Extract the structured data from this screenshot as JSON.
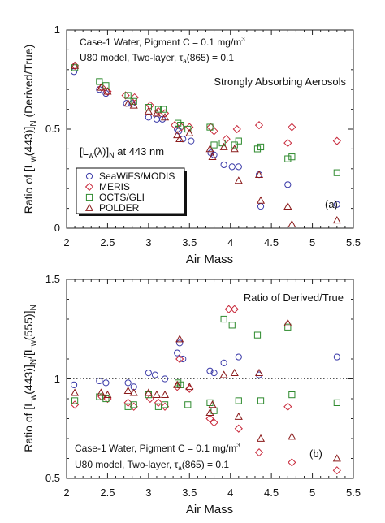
{
  "chart_data": [
    {
      "type": "scatter",
      "panel_label": "(a)",
      "xlabel": "Air Mass",
      "ylabel_parts": [
        "Ratio of [L",
        "w",
        "(443)]",
        "N",
        " (Derived/True)"
      ],
      "xlim": [
        2,
        5.5
      ],
      "ylim": [
        0,
        1
      ],
      "xticks": [
        "2",
        "2.5",
        "3",
        "3.5",
        "4",
        "4.5",
        "5",
        "5.5"
      ],
      "yticks": [
        "0",
        "0.5",
        "1"
      ],
      "annotations": {
        "line1": "Case-1 Water, Pigment C = 0.1 mg/m",
        "line1_sup": "3",
        "line2_a": "U80 model, Two-layer, τ",
        "line2_sub": "a",
        "line2_b": "(865) = 0.1",
        "aerosol": "Strongly Absorbing Aerosols",
        "wl_a": "[L",
        "wl_sub1": "w",
        "wl_b": "(λ)]",
        "wl_sub2": "N",
        "wl_c": " at 443 nm"
      },
      "legend": [
        {
          "name": "SeaWiFS/MODIS",
          "marker": "circle",
          "color": "#3a3aa8"
        },
        {
          "name": "MERIS",
          "marker": "diamond",
          "color": "#c8283a"
        },
        {
          "name": "OCTS/GLI",
          "marker": "square",
          "color": "#2e8a2e"
        },
        {
          "name": "POLDER",
          "marker": "triangle",
          "color": "#8a1a1a"
        }
      ],
      "series": [
        {
          "name": "SeaWiFS/MODIS",
          "points": [
            [
              2.09,
              0.79
            ],
            [
              2.4,
              0.7
            ],
            [
              2.48,
              0.68
            ],
            [
              2.73,
              0.63
            ],
            [
              2.8,
              0.63
            ],
            [
              3.0,
              0.56
            ],
            [
              3.1,
              0.55
            ],
            [
              3.17,
              0.55
            ],
            [
              3.35,
              0.5
            ],
            [
              3.37,
              0.49
            ],
            [
              3.42,
              0.45
            ],
            [
              3.52,
              0.44
            ],
            [
              3.76,
              0.38
            ],
            [
              3.8,
              0.37
            ],
            [
              3.92,
              0.32
            ],
            [
              4.02,
              0.31
            ],
            [
              4.1,
              0.31
            ],
            [
              4.35,
              0.27
            ],
            [
              4.37,
              0.11
            ],
            [
              4.7,
              0.22
            ],
            [
              5.3,
              0.12
            ]
          ]
        },
        {
          "name": "MERIS",
          "points": [
            [
              2.1,
              0.82
            ],
            [
              2.43,
              0.71
            ],
            [
              2.5,
              0.69
            ],
            [
              2.72,
              0.67
            ],
            [
              2.83,
              0.66
            ],
            [
              3.02,
              0.62
            ],
            [
              3.12,
              0.59
            ],
            [
              3.2,
              0.58
            ],
            [
              3.32,
              0.52
            ],
            [
              3.4,
              0.51
            ],
            [
              3.5,
              0.51
            ],
            [
              3.76,
              0.51
            ],
            [
              3.8,
              0.49
            ],
            [
              3.95,
              0.45
            ],
            [
              4.08,
              0.5
            ],
            [
              4.35,
              0.52
            ],
            [
              4.7,
              0.43
            ],
            [
              4.75,
              0.51
            ],
            [
              5.3,
              0.44
            ]
          ]
        },
        {
          "name": "OCTS/GLI",
          "points": [
            [
              2.1,
              0.81
            ],
            [
              2.4,
              0.74
            ],
            [
              2.48,
              0.72
            ],
            [
              2.75,
              0.67
            ],
            [
              2.82,
              0.64
            ],
            [
              3.0,
              0.61
            ],
            [
              3.12,
              0.6
            ],
            [
              3.18,
              0.6
            ],
            [
              3.36,
              0.53
            ],
            [
              3.39,
              0.52
            ],
            [
              3.48,
              0.5
            ],
            [
              3.75,
              0.51
            ],
            [
              3.8,
              0.42
            ],
            [
              3.9,
              0.43
            ],
            [
              4.05,
              0.42
            ],
            [
              4.1,
              0.44
            ],
            [
              4.33,
              0.4
            ],
            [
              4.37,
              0.41
            ],
            [
              4.7,
              0.35
            ],
            [
              4.75,
              0.36
            ],
            [
              5.3,
              0.28
            ]
          ]
        },
        {
          "name": "POLDER",
          "points": [
            [
              2.1,
              0.82
            ],
            [
              2.42,
              0.71
            ],
            [
              2.5,
              0.69
            ],
            [
              2.75,
              0.63
            ],
            [
              2.82,
              0.62
            ],
            [
              3.0,
              0.59
            ],
            [
              3.1,
              0.58
            ],
            [
              3.2,
              0.56
            ],
            [
              3.35,
              0.47
            ],
            [
              3.38,
              0.45
            ],
            [
              3.5,
              0.48
            ],
            [
              3.75,
              0.4
            ],
            [
              3.78,
              0.36
            ],
            [
              3.92,
              0.41
            ],
            [
              4.05,
              0.4
            ],
            [
              4.1,
              0.24
            ],
            [
              4.35,
              0.27
            ],
            [
              4.37,
              0.14
            ],
            [
              4.7,
              0.11
            ],
            [
              4.75,
              0.02
            ],
            [
              5.3,
              0.04
            ]
          ]
        }
      ]
    },
    {
      "type": "scatter",
      "panel_label": "(b)",
      "xlabel": "Air Mass",
      "ylabel_parts": [
        "Ratio of [L",
        "w",
        "(443)]",
        "N",
        "/[L",
        "w",
        "(555)]",
        "N"
      ],
      "xlim": [
        2,
        5.5
      ],
      "ylim": [
        0.5,
        1.5
      ],
      "xticks": [
        "2",
        "2.5",
        "3",
        "3.5",
        "4",
        "4.5",
        "5",
        "5.5"
      ],
      "yticks": [
        "0.5",
        "1",
        "1.5"
      ],
      "reference_line": 1,
      "annotations": {
        "title": "Ratio of Derived/True",
        "line1": "Case-1 Water, Pigment C = 0.1 mg/m",
        "line1_sup": "3",
        "line2_a": "U80 model, Two-layer, τ",
        "line2_sub": "a",
        "line2_b": "(865) = 0.1"
      },
      "series": [
        {
          "name": "SeaWiFS/MODIS",
          "points": [
            [
              2.09,
              0.97
            ],
            [
              2.4,
              0.99
            ],
            [
              2.48,
              0.98
            ],
            [
              2.75,
              0.98
            ],
            [
              2.82,
              0.96
            ],
            [
              3.0,
              1.03
            ],
            [
              3.08,
              1.02
            ],
            [
              3.2,
              1.0
            ],
            [
              3.35,
              1.13
            ],
            [
              3.38,
              1.18
            ],
            [
              3.42,
              1.1
            ],
            [
              3.75,
              1.04
            ],
            [
              3.8,
              1.03
            ],
            [
              3.92,
              1.08
            ],
            [
              4.1,
              1.11
            ],
            [
              4.35,
              1.02
            ],
            [
              5.3,
              1.11
            ]
          ]
        },
        {
          "name": "MERIS",
          "points": [
            [
              2.1,
              0.87
            ],
            [
              2.43,
              0.91
            ],
            [
              2.5,
              0.9
            ],
            [
              2.75,
              0.88
            ],
            [
              2.82,
              0.86
            ],
            [
              3.02,
              0.9
            ],
            [
              3.12,
              0.88
            ],
            [
              3.2,
              0.86
            ],
            [
              3.35,
              0.96
            ],
            [
              3.38,
              1.1
            ],
            [
              3.5,
              0.95
            ],
            [
              3.75,
              0.8
            ],
            [
              3.8,
              0.78
            ],
            [
              3.98,
              1.35
            ],
            [
              4.05,
              1.35
            ],
            [
              4.1,
              0.75
            ],
            [
              4.35,
              0.63
            ],
            [
              4.7,
              0.86
            ],
            [
              4.75,
              0.58
            ],
            [
              5.3,
              0.54
            ]
          ]
        },
        {
          "name": "OCTS/GLI",
          "points": [
            [
              2.1,
              0.89
            ],
            [
              2.4,
              0.91
            ],
            [
              2.48,
              0.9
            ],
            [
              2.75,
              0.86
            ],
            [
              2.82,
              0.87
            ],
            [
              3.0,
              0.92
            ],
            [
              3.12,
              0.86
            ],
            [
              3.2,
              0.87
            ],
            [
              3.36,
              0.98
            ],
            [
              3.39,
              0.97
            ],
            [
              3.48,
              0.87
            ],
            [
              3.75,
              0.88
            ],
            [
              3.8,
              0.84
            ],
            [
              3.92,
              1.3
            ],
            [
              4.02,
              1.27
            ],
            [
              4.1,
              0.89
            ],
            [
              4.33,
              1.22
            ],
            [
              4.37,
              0.89
            ],
            [
              4.7,
              1.26
            ],
            [
              4.75,
              0.92
            ],
            [
              5.3,
              0.88
            ]
          ]
        },
        {
          "name": "POLDER",
          "points": [
            [
              2.1,
              0.93
            ],
            [
              2.42,
              0.93
            ],
            [
              2.5,
              0.92
            ],
            [
              2.75,
              0.94
            ],
            [
              2.82,
              0.93
            ],
            [
              3.0,
              0.93
            ],
            [
              3.1,
              0.92
            ],
            [
              3.2,
              0.92
            ],
            [
              3.35,
              0.97
            ],
            [
              3.38,
              1.2
            ],
            [
              3.5,
              0.96
            ],
            [
              3.75,
              0.83
            ],
            [
              3.78,
              0.87
            ],
            [
              3.92,
              1.02
            ],
            [
              4.05,
              1.03
            ],
            [
              4.1,
              0.81
            ],
            [
              4.35,
              1.03
            ],
            [
              4.37,
              0.7
            ],
            [
              4.7,
              1.28
            ],
            [
              4.75,
              0.71
            ],
            [
              5.3,
              0.6
            ]
          ]
        }
      ]
    }
  ]
}
